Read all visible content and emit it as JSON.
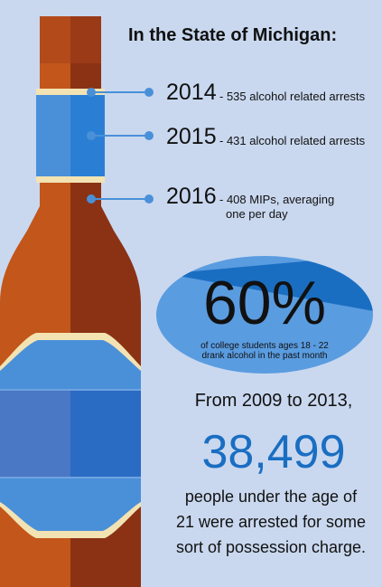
{
  "title": "In the State of Michigan:",
  "stats": [
    {
      "year": "2014",
      "desc_lines": [
        "- 535 alcohol related arrests"
      ]
    },
    {
      "year": "2015",
      "desc_lines": [
        "- 431 alcohol related arrests"
      ]
    },
    {
      "year": "2016",
      "desc_lines": [
        "- 408 MIPs, averaging",
        "one per day"
      ]
    }
  ],
  "highlight": {
    "percent": "60%",
    "caption_lines": [
      "of college students ages 18 - 22",
      "drank alcohol in the past month"
    ]
  },
  "arrests": {
    "intro": "From 2009 to 2013,",
    "number": "38,499",
    "closing_lines": [
      "people under the age of",
      "21 were arrested for some",
      "sort of possession charge."
    ]
  },
  "colors": {
    "background": "#c9d8ef",
    "bottle_brown": "#8b3214",
    "bottle_orange": "#c2561b",
    "label_blue": "#4a90d9",
    "accent_blue": "#1a6ec2",
    "cream": "#f3e3b3"
  }
}
